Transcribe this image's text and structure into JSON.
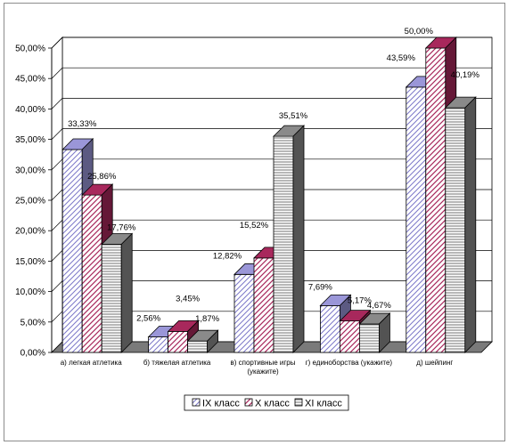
{
  "chart_data": {
    "type": "bar",
    "categories": [
      [
        "а) легкая атлетика"
      ],
      [
        "б) тяжелая атлетика"
      ],
      [
        "в) спортивные игры",
        "(укажите)"
      ],
      [
        "г) единоборства (укажите)"
      ],
      [
        "д) шейпинг"
      ]
    ],
    "series": [
      {
        "name": "IX класс",
        "values": [
          33.33,
          2.56,
          12.82,
          7.69,
          43.59
        ],
        "labels": [
          "33,33%",
          "2,56%",
          "12,82%",
          "7,69%",
          "43,59%"
        ]
      },
      {
        "name": "X класс",
        "values": [
          25.86,
          3.45,
          15.52,
          5.17,
          50.0
        ],
        "labels": [
          "25,86%",
          "3,45%",
          "15,52%",
          "5,17%",
          "50,00%"
        ]
      },
      {
        "name": "XI класс",
        "values": [
          17.76,
          1.87,
          35.51,
          4.67,
          40.19
        ],
        "labels": [
          "17,76%",
          "1,87%",
          "35,51%",
          "4,67%",
          "40,19%"
        ]
      }
    ],
    "yticks": [
      "0,00%",
      "5,00%",
      "10,00%",
      "15,00%",
      "20,00%",
      "25,00%",
      "30,00%",
      "35,00%",
      "40,00%",
      "45,00%",
      "50,00%"
    ],
    "ylim": [
      0,
      50
    ],
    "grid": true,
    "legend_position": "bottom",
    "colors": {
      "series": [
        "#9a96d8",
        "#a8285c",
        "#8a8a8a"
      ],
      "floor": "#7a7a7a",
      "wall": "#ffffff"
    }
  }
}
